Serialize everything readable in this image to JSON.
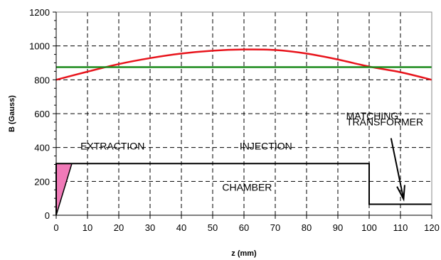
{
  "chart_data": {
    "type": "line",
    "title": "",
    "xlabel": "z (mm)",
    "ylabel": "B (Gauss)",
    "xlim": [
      0,
      120
    ],
    "ylim": [
      0,
      1200
    ],
    "xticks": [
      0,
      10,
      20,
      30,
      40,
      50,
      60,
      70,
      80,
      90,
      100,
      110,
      120
    ],
    "yticks": [
      0,
      200,
      400,
      600,
      800,
      1000,
      1200
    ],
    "grid": true,
    "grid_style": "dashed",
    "legend": "none",
    "series": [
      {
        "color": "#e8141c",
        "points": [
          [
            0,
            800
          ],
          [
            10,
            848
          ],
          [
            20,
            893
          ],
          [
            30,
            928
          ],
          [
            40,
            955
          ],
          [
            50,
            972
          ],
          [
            60,
            979
          ],
          [
            70,
            976
          ],
          [
            80,
            955
          ],
          [
            90,
            920
          ],
          [
            100,
            878
          ],
          [
            110,
            845
          ],
          [
            120,
            800
          ]
        ]
      },
      {
        "color": "#1a8a1a",
        "points": [
          [
            0,
            875
          ],
          [
            120,
            875
          ]
        ]
      },
      {
        "color": "#000000",
        "points": [
          [
            0,
            0
          ],
          [
            0,
            305
          ],
          [
            100,
            305
          ],
          [
            100,
            65
          ],
          [
            120,
            65
          ]
        ]
      }
    ],
    "shaded_region": {
      "color": "#f07ab8",
      "points": [
        [
          0,
          0
        ],
        [
          0,
          305
        ],
        [
          5,
          305
        ]
      ]
    },
    "shaded_edge": [
      [
        0,
        0
      ],
      [
        5,
        305
      ]
    ],
    "annotations": [
      {
        "text": "EXTRACTION",
        "x": 18,
        "y": 410
      },
      {
        "text": "INJECTION",
        "x": 67,
        "y": 410
      },
      {
        "text": "CHAMBER",
        "x": 61,
        "y": 165
      },
      {
        "text": "MATCHING",
        "x": 101,
        "y": 588
      },
      {
        "text": "TRANSFORMER",
        "x": 105,
        "y": 552
      }
    ],
    "arrow": {
      "from": [
        107,
        455
      ],
      "to": [
        111,
        95
      ]
    }
  }
}
